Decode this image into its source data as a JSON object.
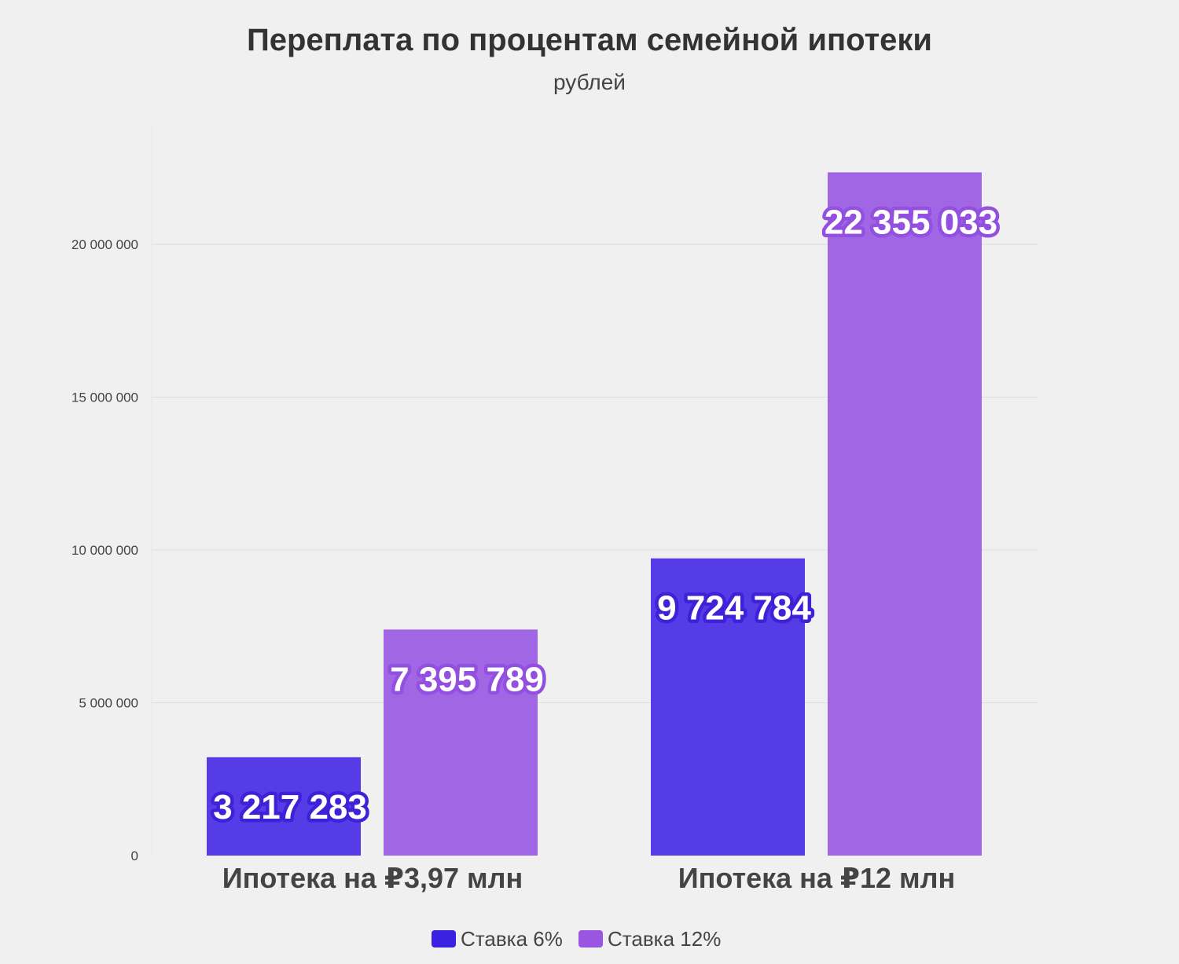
{
  "chart_data": {
    "type": "bar",
    "title": "Переплата по процентам семейной ипотеки",
    "subtitle": "рублей",
    "xlabel": "",
    "ylabel": "",
    "categories": [
      "Ипотека на ₽3,97 млн",
      "Ипотека на ₽12 млн"
    ],
    "series": [
      {
        "name": "Ставка 6%",
        "values": [
          3217283,
          9724784
        ],
        "color": "#553ce6",
        "outline": "#3d22d8",
        "swatch": "#3b22e0",
        "labels": [
          "3 217 283",
          "9 724 784"
        ]
      },
      {
        "name": "Ставка 12%",
        "values": [
          7395789,
          22355033
        ],
        "color": "#a066e4",
        "outline": "#9350e0",
        "swatch": "#9b55e3",
        "labels": [
          "7 395 789",
          "22 355 033"
        ]
      }
    ],
    "ylim": [
      0,
      20000000
    ],
    "yticks": [
      0,
      5000000,
      10000000,
      15000000,
      20000000
    ],
    "ytick_labels": [
      "0",
      "5 000 000",
      "10 000 000",
      "15 000 000",
      "20 000 000"
    ],
    "grid": true,
    "legend": "bottom-center"
  }
}
